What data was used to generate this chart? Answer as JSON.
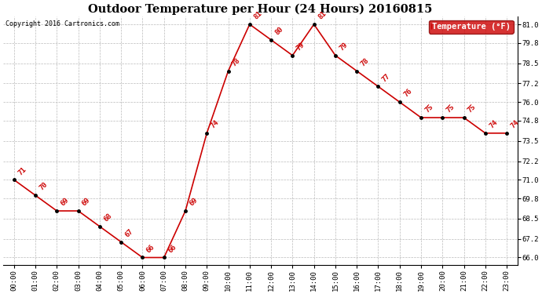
{
  "title": "Outdoor Temperature per Hour (24 Hours) 20160815",
  "copyright": "Copyright 2016 Cartronics.com",
  "legend_label": "Temperature (°F)",
  "hours": [
    "00:00",
    "01:00",
    "02:00",
    "03:00",
    "04:00",
    "05:00",
    "06:00",
    "07:00",
    "08:00",
    "09:00",
    "10:00",
    "11:00",
    "12:00",
    "13:00",
    "14:00",
    "15:00",
    "16:00",
    "17:00",
    "18:00",
    "19:00",
    "20:00",
    "21:00",
    "22:00",
    "23:00"
  ],
  "temps": [
    71,
    70,
    69,
    69,
    68,
    67,
    66,
    66,
    69,
    74,
    78,
    81,
    80,
    79,
    81,
    79,
    78,
    77,
    76,
    75,
    75,
    75,
    74,
    74
  ],
  "ylim": [
    65.5,
    81.5
  ],
  "yticks": [
    66.0,
    67.2,
    68.5,
    69.8,
    71.0,
    72.2,
    73.5,
    74.8,
    76.0,
    77.2,
    78.5,
    79.8,
    81.0
  ],
  "ytick_labels": [
    "66.0",
    "67.2",
    "68.5",
    "69.8",
    "71.0",
    "72.2",
    "73.5",
    "74.8",
    "76.0",
    "77.2",
    "78.5",
    "79.8",
    "81.0"
  ],
  "line_color": "#cc0000",
  "marker_color": "#000000",
  "label_color": "#cc0000",
  "title_color": "#000000",
  "bg_color": "#ffffff",
  "grid_color": "#bbbbbb",
  "legend_bg": "#cc0000",
  "legend_text": "#ffffff",
  "title_fontsize": 10.5,
  "tick_fontsize": 6.5,
  "label_fontsize": 6.5,
  "annot_fontsize": 6.5
}
